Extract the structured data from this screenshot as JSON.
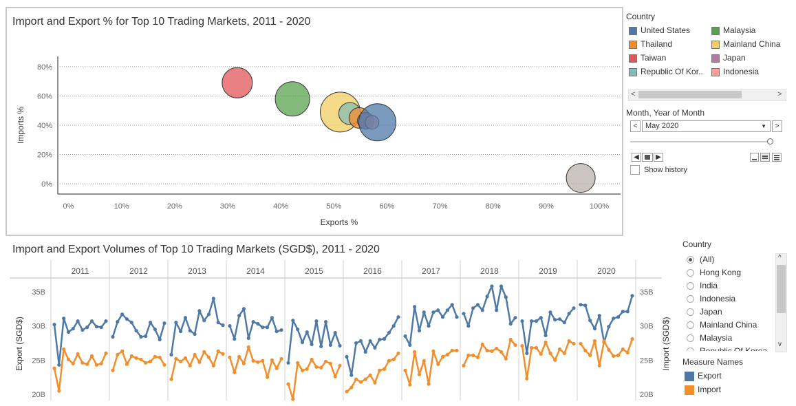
{
  "chart_data": [
    {
      "type": "scatter",
      "title": "Import and Export % for Top 10 Trading Markets, 2011 - 2020",
      "xlabel": "Exports %",
      "ylabel": "Imports %",
      "xlim": [
        -2,
        104
      ],
      "ylim": [
        -7,
        87
      ],
      "x_ticks": [
        "0%",
        "10%",
        "20%",
        "30%",
        "40%",
        "50%",
        "60%",
        "70%",
        "80%",
        "90%",
        "100%"
      ],
      "y_ticks": [
        "0%",
        "20%",
        "40%",
        "60%",
        "80%"
      ],
      "points": [
        {
          "name": "Mainland China",
          "x": 51.2,
          "y": 49,
          "color": "#f1ce63"
        },
        {
          "name": "Taiwan",
          "x": 31.8,
          "y": 69,
          "color": "#e15759"
        },
        {
          "name": "Malaysia",
          "x": 42.2,
          "y": 58,
          "color": "#59a14f"
        },
        {
          "name": "Republic Of Korea",
          "x": 53,
          "y": 48,
          "color": "#86bcb6"
        },
        {
          "name": "Thailand",
          "x": 54.8,
          "y": 45,
          "color": "#f28e2b"
        },
        {
          "name": "Japan",
          "x": 56,
          "y": 43,
          "color": "#b07aa1"
        },
        {
          "name": "Indonesia",
          "x": 57.2,
          "y": 42,
          "color": "#ff9d9a"
        },
        {
          "name": "United States",
          "x": 58.2,
          "y": 42,
          "color": "#4e79a7"
        },
        {
          "name": "Hong Kong",
          "x": 96.5,
          "y": 4,
          "color": "#bab0ac"
        }
      ]
    },
    {
      "type": "line",
      "title": "Import and Export Volumes of Top 10 Trading Markets (SGD$), 2011 - 2020",
      "ylabel_left": "Export (SGD$)",
      "ylabel_right": "Import (SGD$)",
      "ylim": [
        19.5,
        36.5
      ],
      "y_ticks": [
        "20B",
        "25B",
        "30B",
        "35B"
      ],
      "years": [
        "2011",
        "2012",
        "2013",
        "2014",
        "2015",
        "2016",
        "2017",
        "2018",
        "2019",
        "2020"
      ],
      "series": [
        {
          "name": "Export",
          "color": "#4e79a7",
          "values": [
            30.2,
            24.3,
            31.1,
            29.1,
            29.6,
            30.7,
            29.4,
            29.8,
            30.7,
            29.9,
            29.8,
            30.7,
            28.4,
            30.6,
            31.7,
            31.0,
            30.5,
            29.3,
            28.4,
            28.5,
            30.5,
            29.5,
            28.0,
            30.4,
            25.8,
            30.5,
            29.2,
            31.2,
            29.3,
            28.8,
            32.2,
            30.8,
            31.7,
            34.0,
            30.5,
            30.1,
            30.0,
            28.1,
            31.5,
            32.5,
            28.2,
            30.6,
            30.3,
            29.8,
            29.8,
            31.2,
            29.2,
            29.4,
            24.6,
            30.8,
            29.5,
            27.6,
            29.1,
            27.3,
            30.7,
            27.0,
            30.6,
            27.2,
            29.0,
            27.1,
            25.5,
            22.8,
            27.5,
            27.8,
            26.2,
            27.8,
            26.8,
            28.0,
            28.1,
            29.0,
            30.0,
            31.3,
            28.5,
            27.2,
            32.8,
            29.3,
            32.0,
            30.0,
            32.0,
            32.3,
            31.3,
            32.3,
            33.1,
            31.3,
            31.8,
            30.0,
            32.6,
            33.1,
            32.3,
            34.3,
            35.8,
            32.3,
            35.8,
            34.2,
            30.3,
            31.2,
            30.7,
            26.0,
            30.7,
            30.7,
            31.2,
            28.6,
            32.0,
            30.9,
            31.0,
            30.5,
            31.8,
            32.6,
            33.1,
            33.0,
            30.8,
            29.6,
            31.5,
            27.6,
            29.9,
            31.1,
            31.3,
            32.1,
            32.1,
            34.4
          ]
        },
        {
          "name": "Import",
          "color": "#f28e2b",
          "values": [
            23.8,
            20.5,
            26.6,
            25.1,
            24.5,
            25.9,
            24.6,
            24.4,
            25.6,
            24.3,
            24.5,
            26.0,
            23.5,
            25.8,
            26.3,
            24.4,
            25.6,
            25.3,
            25.1,
            24.6,
            24.8,
            25.5,
            25.4,
            24.3,
            22.2,
            25.2,
            24.8,
            25.3,
            24.2,
            25.8,
            24.7,
            26.2,
            25.4,
            24.2,
            26.3,
            25.9,
            25.4,
            23.2,
            25.5,
            24.5,
            26.9,
            24.9,
            24.7,
            24.9,
            22.5,
            25.0,
            23.8,
            25.2,
            21.5,
            19.3,
            24.6,
            23.5,
            23.7,
            25.1,
            24.0,
            23.9,
            24.8,
            24.5,
            22.6,
            24.2,
            20.4,
            21.0,
            22.2,
            21.8,
            22.2,
            22.8,
            21.7,
            23.5,
            23.7,
            24.9,
            25.1,
            26.0,
            23.5,
            21.4,
            26.2,
            22.9,
            24.9,
            21.5,
            26.3,
            24.4,
            25.5,
            25.8,
            26.4,
            26.4,
            24.2,
            25.7,
            25.7,
            25.4,
            27.3,
            26.4,
            26.3,
            26.7,
            26.2,
            25.2,
            28.0,
            27.2,
            27.1,
            22.3,
            26.8,
            26.8,
            25.9,
            27.6,
            26.0,
            25.0,
            26.6,
            26.0,
            27.8,
            27.4,
            27.4,
            26.4,
            25.7,
            27.8,
            24.2,
            27.8,
            26.5,
            25.6,
            25.7,
            26.6,
            26.1,
            28.1
          ]
        }
      ]
    }
  ],
  "bubble_legend": {
    "title": "Country",
    "items": [
      {
        "label": "United States",
        "color": "#4e79a7"
      },
      {
        "label": "Malaysia",
        "color": "#59a14f"
      },
      {
        "label": "Thailand",
        "color": "#f28e2b"
      },
      {
        "label": "Mainland China",
        "color": "#f1ce63"
      },
      {
        "label": "Taiwan",
        "color": "#e15759"
      },
      {
        "label": "Japan",
        "color": "#b07aa1"
      },
      {
        "label": "Republic Of Kor..",
        "color": "#86bcb6"
      },
      {
        "label": "Indonesia",
        "color": "#ff9d9a"
      }
    ],
    "scroll_left": "<",
    "scroll_right": ">"
  },
  "month_filter": {
    "title": "Month, Year of Month",
    "value": "May 2020",
    "prev": "<",
    "next": ">",
    "show_history": "Show history"
  },
  "country_filter": {
    "title": "Country",
    "options": [
      "(All)",
      "Hong Kong",
      "India",
      "Indonesia",
      "Japan",
      "Mainland China",
      "Malaysia",
      "Republic Of Korea"
    ],
    "selected": "(All)"
  },
  "measure_legend": {
    "title": "Measure Names",
    "items": [
      {
        "label": "Export",
        "color": "#4e79a7"
      },
      {
        "label": "Import",
        "color": "#f28e2b"
      }
    ]
  }
}
